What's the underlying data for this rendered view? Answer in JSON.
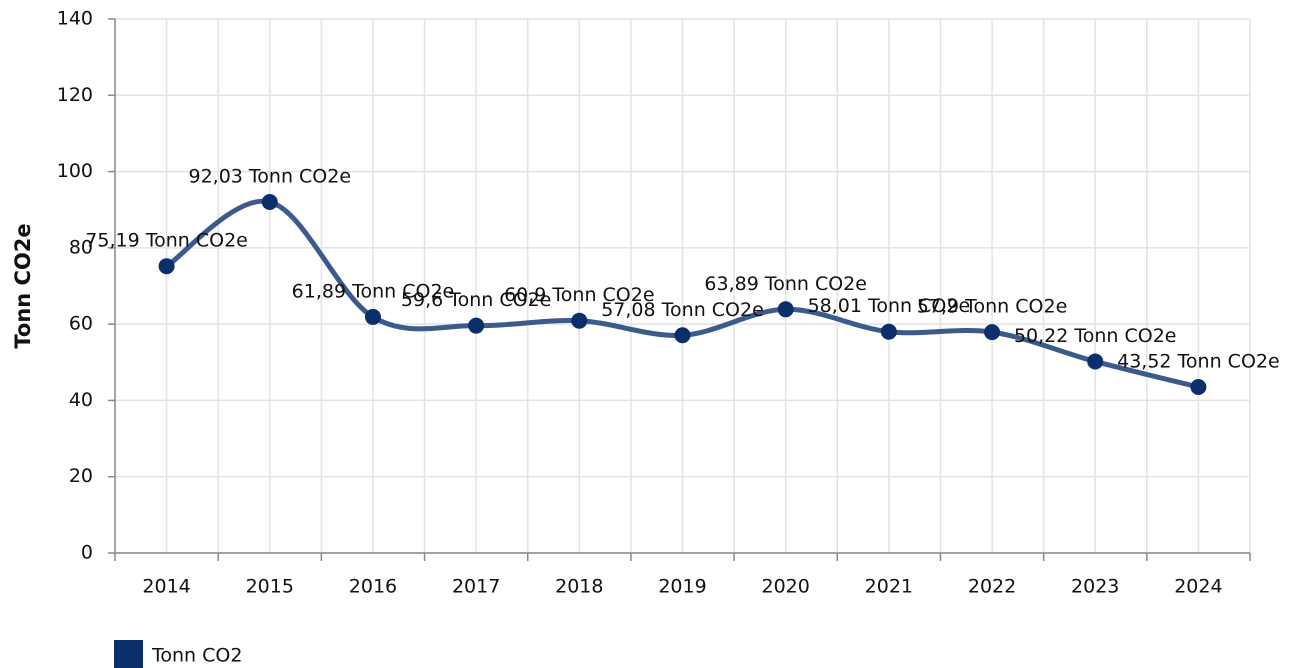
{
  "chart_data": {
    "type": "line",
    "y_label": "Tonn CO2e",
    "categories": [
      "2014",
      "2015",
      "2016",
      "2017",
      "2018",
      "2019",
      "2020",
      "2021",
      "2022",
      "2023",
      "2024"
    ],
    "series": [
      {
        "name": "Tonn CO2",
        "color": "#0b2f6b",
        "line_color": "#3d5a8c",
        "values": [
          75.19,
          92.03,
          61.89,
          59.6,
          60.9,
          57.08,
          63.89,
          58.01,
          57.9,
          50.22,
          43.52
        ],
        "value_labels": [
          "75,19 Tonn CO2e",
          "92,03 Tonn CO2e",
          "61,89 Tonn CO2e",
          "59,6 Tonn CO2e",
          "60,9 Tonn CO2e",
          "57,08 Tonn CO2e",
          "63,89 Tonn CO2e",
          "58,01 Tonn CO2e",
          "57,9 Tonn CO2e",
          "50,22 Tonn CO2e",
          "43,52 Tonn CO2e"
        ]
      }
    ],
    "ylim": [
      0,
      140
    ],
    "yticks": [
      0,
      20,
      40,
      60,
      80,
      100,
      120,
      140
    ],
    "grid": true
  }
}
